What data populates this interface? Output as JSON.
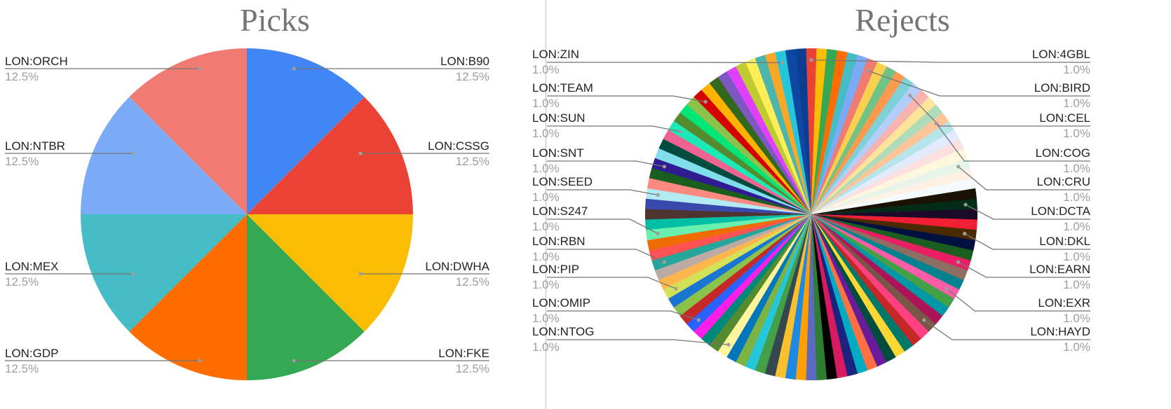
{
  "chart_data": [
    {
      "type": "pie",
      "title": "Picks",
      "slices": [
        {
          "label": "LON:B90",
          "value": 12.5,
          "pct_label": "12.5%",
          "color": "#4285f4"
        },
        {
          "label": "LON:CSSG",
          "value": 12.5,
          "pct_label": "12.5%",
          "color": "#ea4335"
        },
        {
          "label": "LON:DWHA",
          "value": 12.5,
          "pct_label": "12.5%",
          "color": "#fbbc04"
        },
        {
          "label": "LON:FKE",
          "value": 12.5,
          "pct_label": "12.5%",
          "color": "#34a853"
        },
        {
          "label": "LON:GDP",
          "value": 12.5,
          "pct_label": "12.5%",
          "color": "#ff6d01"
        },
        {
          "label": "LON:MEX",
          "value": 12.5,
          "pct_label": "12.5%",
          "color": "#46bdc6"
        },
        {
          "label": "LON:NTBR",
          "value": 12.5,
          "pct_label": "12.5%",
          "color": "#7baaf7"
        },
        {
          "label": "LON:ORCH",
          "value": 12.5,
          "pct_label": "12.5%",
          "color": "#f07b72"
        }
      ]
    },
    {
      "type": "pie",
      "title": "Rejects",
      "slice_count": 100,
      "slice_value": 1.0,
      "labeled_slices": [
        {
          "label": "LON:4GBL",
          "pct_label": "1.0%",
          "side": "right",
          "slice_index": 1
        },
        {
          "label": "LON:BIRD",
          "pct_label": "1.0%",
          "side": "right",
          "slice_index": 7
        },
        {
          "label": "LON:CEL",
          "pct_label": "1.0%",
          "side": "right",
          "slice_index": 12
        },
        {
          "label": "LON:COG",
          "pct_label": "1.0%",
          "side": "right",
          "slice_index": 16
        },
        {
          "label": "LON:CRU",
          "pct_label": "1.0%",
          "side": "right",
          "slice_index": 21
        },
        {
          "label": "LON:DCTA",
          "pct_label": "1.0%",
          "side": "right",
          "slice_index": 25
        },
        {
          "label": "LON:DKL",
          "pct_label": "1.0%",
          "side": "right",
          "slice_index": 28
        },
        {
          "label": "LON:EARN",
          "pct_label": "1.0%",
          "side": "right",
          "slice_index": 31
        },
        {
          "label": "LON:EXR",
          "pct_label": "1.0%",
          "side": "right",
          "slice_index": 34
        },
        {
          "label": "LON:HAYD",
          "pct_label": "1.0%",
          "side": "right",
          "slice_index": 38
        },
        {
          "label": "LON:NTOG",
          "pct_label": "1.0%",
          "side": "left",
          "slice_index": 60
        },
        {
          "label": "LON:OMIP",
          "pct_label": "1.0%",
          "side": "left",
          "slice_index": 64
        },
        {
          "label": "LON:PIP",
          "pct_label": "1.0%",
          "side": "left",
          "slice_index": 68
        },
        {
          "label": "LON:RBN",
          "pct_label": "1.0%",
          "side": "left",
          "slice_index": 71
        },
        {
          "label": "LON:S247",
          "pct_label": "1.0%",
          "side": "left",
          "slice_index": 74
        },
        {
          "label": "LON:SEED",
          "pct_label": "1.0%",
          "side": "left",
          "slice_index": 78
        },
        {
          "label": "LON:SNT",
          "pct_label": "1.0%",
          "side": "left",
          "slice_index": 81
        },
        {
          "label": "LON:SUN",
          "pct_label": "1.0%",
          "side": "left",
          "slice_index": 85
        },
        {
          "label": "LON:TEAM",
          "pct_label": "1.0%",
          "side": "left",
          "slice_index": 89
        },
        {
          "label": "LON:ZIN",
          "pct_label": "1.0%",
          "side": "left",
          "slice_index": 98
        }
      ],
      "colors": [
        "#ea4335",
        "#fbbc04",
        "#34a853",
        "#ff6d01",
        "#46bdc6",
        "#7baaf7",
        "#f07b72",
        "#fcd04f",
        "#71c287",
        "#ff994d",
        "#7ed1d7",
        "#b3cefb",
        "#f7b4ae",
        "#fde49b",
        "#aedcba",
        "#ffc599",
        "#b5e5e8",
        "#e1ebfd",
        "#fae1df",
        "#fef6dd",
        "#e6f4ea",
        "#fff1e6",
        "#f5fbfb",
        "#191102",
        "#022c16",
        "#1c0a2b",
        "#f01f34",
        "#4a2a00",
        "#00113f",
        "#1b5e20",
        "#e91e63",
        "#8d6e63",
        "#00838f",
        "#ff5ca8",
        "#43a047",
        "#0097a7",
        "#ad1457",
        "#795548",
        "#ff4081",
        "#c62828",
        "#00796b",
        "#fdd835",
        "#004d40",
        "#6a1b9a",
        "#ff7043",
        "#00acc1",
        "#1a237e",
        "#d81b60",
        "#000000",
        "#2e7d32",
        "#5c6bc0",
        "#ffa000",
        "#1e88e5",
        "#fbc02d",
        "#37474f",
        "#43a047",
        "#26c6da",
        "#7cb342",
        "#0277bd",
        "#fff59d",
        "#558b2f",
        "#00897b",
        "#ff1ee8",
        "#2962ff",
        "#c62828",
        "#8bc34a",
        "#1976d2",
        "#d4e157",
        "#ffb74d",
        "#bcaaa4",
        "#26a69a",
        "#ff5252",
        "#ef6c00",
        "#69f0ae",
        "#00bfa5",
        "#4e342e",
        "#3949ab",
        "#b2ebf2",
        "#ff8a80",
        "#1b5e20",
        "#311b92",
        "#80deea",
        "#004d40",
        "#f06292",
        "#1de9b6",
        "#558b2f",
        "#00e676",
        "#8bc34a",
        "#d50000",
        "#ffb300",
        "#33691e",
        "#7e57c2",
        "#e040fb",
        "#c0ca33",
        "#ffee58",
        "#4db6ac",
        "#f9a825",
        "#26c6da",
        "#0d47a1",
        "#90a4ae"
      ]
    }
  ]
}
